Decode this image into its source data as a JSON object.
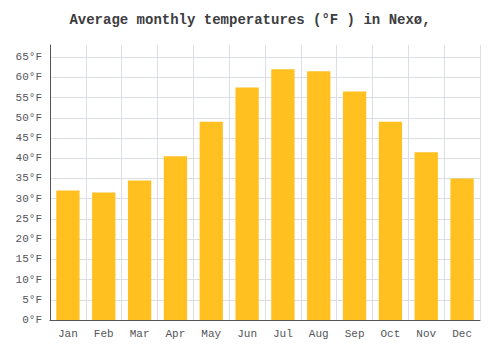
{
  "chart_data": {
    "type": "bar",
    "title": "Average monthly temperatures (°F ) in Nexø,",
    "categories": [
      "Jan",
      "Feb",
      "Mar",
      "Apr",
      "May",
      "Jun",
      "Jul",
      "Aug",
      "Sep",
      "Oct",
      "Nov",
      "Dec"
    ],
    "values": [
      32,
      31.5,
      34.5,
      40.5,
      49,
      57.5,
      62,
      61.5,
      56.5,
      49,
      41.5,
      35
    ],
    "color": "#FFC020",
    "ylim": [
      0,
      68
    ],
    "yticks": [
      {
        "value": 0,
        "label": "0°F"
      },
      {
        "value": 5,
        "label": "5°F"
      },
      {
        "value": 10,
        "label": "10°F"
      },
      {
        "value": 15,
        "label": "15°F"
      },
      {
        "value": 20,
        "label": "20°F"
      },
      {
        "value": 25,
        "label": "25°F"
      },
      {
        "value": 30,
        "label": "30°F"
      },
      {
        "value": 35,
        "label": "35°F"
      },
      {
        "value": 40,
        "label": "40°F"
      },
      {
        "value": 45,
        "label": "45°F"
      },
      {
        "value": 50,
        "label": "50°F"
      },
      {
        "value": 55,
        "label": "55°F"
      },
      {
        "value": 60,
        "label": "60°F"
      },
      {
        "value": 65,
        "label": "65°F"
      }
    ],
    "grid": true
  }
}
